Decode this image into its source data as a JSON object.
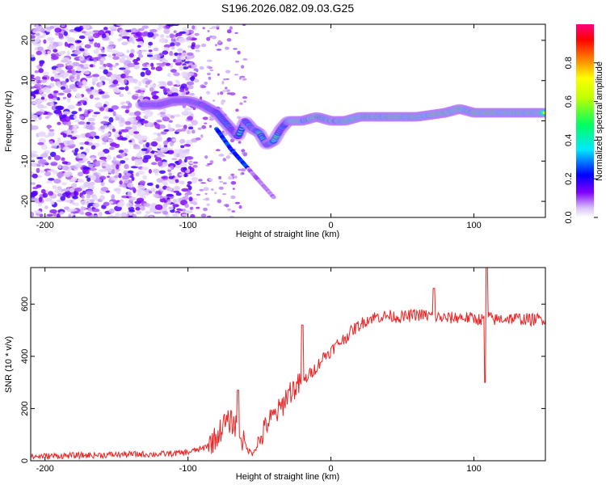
{
  "title": "S196.2026.082.09.03.G25",
  "chart_data": [
    {
      "type": "heatmap",
      "title": "S196.2026.082.09.03.G25",
      "xlabel": "Height of straight line (km)",
      "ylabel": "Frequency (Hz)",
      "xlim": [
        -210,
        150
      ],
      "ylim": [
        -24,
        24
      ],
      "xticks": [
        -200,
        -100,
        0,
        100
      ],
      "yticks": [
        -20,
        -10,
        0,
        10,
        20
      ],
      "colorbar": {
        "label": "Normalized spectral amplitude",
        "range": [
          0,
          1
        ],
        "ticks": [
          "0.0",
          "0.2",
          "0.4",
          "0.6",
          "0.8"
        ],
        "colors": [
          "#ffffff",
          "#c8a8f0",
          "#8000ff",
          "#0000ff",
          "#00e0ff",
          "#00ff60",
          "#ffff00",
          "#ff8000",
          "#ff0000",
          "#ff0080"
        ]
      },
      "ridge": {
        "x": [
          -130,
          -120,
          -110,
          -100,
          -90,
          -80,
          -75,
          -70,
          -65,
          -60,
          -55,
          -50,
          -45,
          -40,
          -35,
          -30,
          -20,
          -10,
          0,
          10,
          20,
          40,
          60,
          80,
          90,
          100,
          120,
          150
        ],
        "freq": [
          4,
          4,
          5,
          5,
          4,
          2,
          0,
          -2,
          -4,
          0,
          -2,
          -3,
          -6,
          -5,
          -2,
          0,
          0,
          1,
          0,
          0,
          1,
          1,
          1,
          2,
          3,
          2,
          2,
          2
        ]
      },
      "branch": {
        "x": [
          -80,
          -70,
          -60,
          -50,
          -40
        ],
        "freq": [
          -2,
          -7,
          -11,
          -15,
          -19
        ]
      }
    },
    {
      "type": "line",
      "xlabel": "Height of straight line (km)",
      "ylabel": "SNR (10 * v/v)",
      "xlim": [
        -210,
        150
      ],
      "ylim": [
        0,
        740
      ],
      "xticks": [
        -200,
        -100,
        0,
        100
      ],
      "yticks": [
        0,
        200,
        400,
        600
      ],
      "color": "#ee2222",
      "x": [
        -210,
        -200,
        -180,
        -160,
        -140,
        -120,
        -110,
        -100,
        -95,
        -90,
        -85,
        -80,
        -75,
        -70,
        -65,
        -62,
        -58,
        -55,
        -50,
        -45,
        -40,
        -35,
        -30,
        -25,
        -20,
        -15,
        -10,
        -5,
        0,
        5,
        10,
        15,
        20,
        25,
        30,
        40,
        50,
        60,
        70,
        80,
        90,
        100,
        107,
        108,
        109,
        110,
        115,
        120,
        130,
        140,
        150
      ],
      "y": [
        15,
        18,
        20,
        22,
        25,
        25,
        28,
        32,
        40,
        45,
        65,
        90,
        140,
        150,
        130,
        80,
        40,
        30,
        70,
        140,
        170,
        200,
        260,
        280,
        300,
        330,
        360,
        400,
        420,
        450,
        470,
        500,
        520,
        540,
        550,
        555,
        550,
        560,
        555,
        545,
        550,
        545,
        540,
        310,
        710,
        550,
        540,
        545,
        545,
        540,
        545
      ],
      "noise": 40,
      "spikes": [
        {
          "x": -65,
          "y": 270
        },
        {
          "x": -20,
          "y": 520
        },
        {
          "x": 72,
          "y": 660
        },
        {
          "x": 108,
          "y": 300
        },
        {
          "x": 109,
          "y": 740
        }
      ]
    }
  ]
}
